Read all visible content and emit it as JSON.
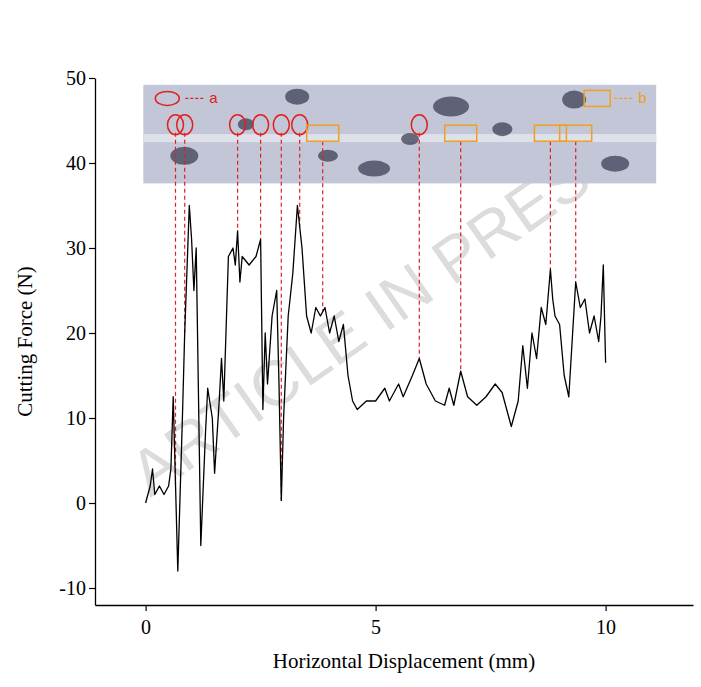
{
  "chart_data": {
    "type": "line",
    "x_label": "Horizontal Displacement (mm)",
    "y_label": "Cutting Force (N)",
    "watermark": "ARTICLE IN PRESS",
    "xlim": [
      -1.1,
      11.9
    ],
    "ylim": [
      -12,
      50
    ],
    "xticks": [
      0,
      5,
      10
    ],
    "yticks": [
      -10,
      0,
      10,
      20,
      30,
      40,
      50
    ],
    "x": [
      0,
      0.1,
      0.15,
      0.2,
      0.3,
      0.4,
      0.5,
      0.55,
      0.6,
      0.7,
      0.8,
      0.85,
      0.95,
      1.0,
      1.05,
      1.1,
      1.2,
      1.3,
      1.35,
      1.45,
      1.5,
      1.6,
      1.65,
      1.7,
      1.8,
      1.9,
      1.95,
      2.0,
      2.05,
      2.1,
      2.25,
      2.4,
      2.5,
      2.55,
      2.6,
      2.65,
      2.75,
      2.85,
      2.9,
      2.95,
      3.0,
      3.1,
      3.2,
      3.3,
      3.4,
      3.5,
      3.6,
      3.7,
      3.8,
      3.9,
      4.0,
      4.1,
      4.2,
      4.3,
      4.4,
      4.5,
      4.6,
      4.8,
      5.0,
      5.2,
      5.3,
      5.5,
      5.6,
      5.8,
      5.95,
      6.1,
      6.3,
      6.5,
      6.6,
      6.7,
      6.85,
      7.0,
      7.2,
      7.4,
      7.6,
      7.75,
      7.9,
      7.95,
      8.1,
      8.2,
      8.3,
      8.4,
      8.5,
      8.6,
      8.7,
      8.8,
      8.85,
      8.9,
      9.0,
      9.1,
      9.2,
      9.35,
      9.45,
      9.55,
      9.65,
      9.75,
      9.85,
      9.9,
      9.95,
      10.0
    ],
    "series": [
      {
        "color": "#000000",
        "values": [
          0,
          2,
          4,
          1,
          2,
          1,
          2,
          4,
          12.5,
          -8,
          10,
          20,
          35,
          31,
          25,
          30,
          -5,
          8,
          13.5,
          10,
          3.5,
          12,
          17,
          12,
          29,
          30,
          28,
          32,
          26,
          29,
          28,
          29,
          31,
          11,
          20,
          14,
          22,
          25,
          14,
          0.3,
          10,
          22,
          27,
          35,
          30,
          22,
          20,
          23,
          22,
          23,
          20,
          22,
          19,
          21,
          15,
          12,
          11,
          12,
          12,
          13.5,
          12,
          14,
          12.5,
          15,
          17,
          14,
          12,
          11.5,
          13.5,
          11.5,
          15.5,
          12.5,
          11.5,
          12.5,
          14,
          13,
          10,
          9,
          12,
          18.5,
          13.5,
          20,
          17,
          23,
          21,
          27.5,
          24,
          22,
          21,
          15,
          12.5,
          26,
          23,
          24,
          20,
          22,
          19,
          22,
          28,
          16.5
        ]
      }
    ],
    "regions": [
      {
        "label": "a",
        "color": "#e02020",
        "marker": "ellipse",
        "x": [
          0.65,
          0.85,
          2.0,
          2.5,
          2.95,
          3.35,
          5.95
        ]
      },
      {
        "label": "b",
        "color": "#f0a020",
        "marker": "rect",
        "x": [
          3.85,
          6.85,
          8.8,
          9.35
        ]
      }
    ]
  }
}
